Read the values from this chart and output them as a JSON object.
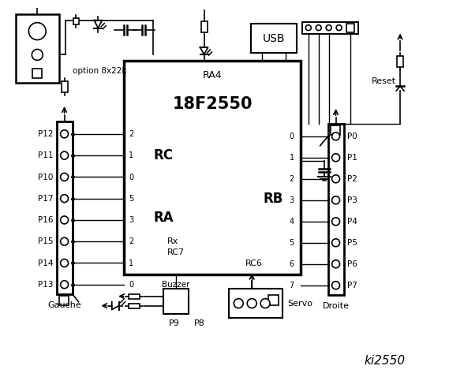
{
  "bg_color": "#ffffff",
  "chip_label_top": "RA4",
  "chip_label_main": "18F2550",
  "chip_label_rc": "RC",
  "chip_label_ra": "RA",
  "chip_label_rb": "RB",
  "chip_label_rx": "Rx",
  "chip_label_rc7": "RC7",
  "chip_label_rc6": "RC6",
  "left_labels": [
    "P12",
    "P11",
    "P10",
    "P17",
    "P16",
    "P15",
    "P14",
    "P13"
  ],
  "left_pins_rc": [
    "2",
    "1",
    "0",
    "5",
    "3",
    "2",
    "1",
    "0"
  ],
  "right_labels": [
    "P0",
    "P1",
    "P2",
    "P3",
    "P4",
    "P5",
    "P6",
    "P7"
  ],
  "right_pins_rb": [
    "0",
    "1",
    "2",
    "3",
    "4",
    "5",
    "6",
    "7"
  ],
  "text_option": "option 8x22k",
  "text_gauche": "Gauche",
  "text_droite": "Droite",
  "text_buzzer": "Buzzer",
  "text_servo": "Servo",
  "text_reset": "Reset",
  "text_usb": "USB",
  "text_p9": "P9",
  "text_p8": "P8",
  "text_ki2550": "ki2550"
}
